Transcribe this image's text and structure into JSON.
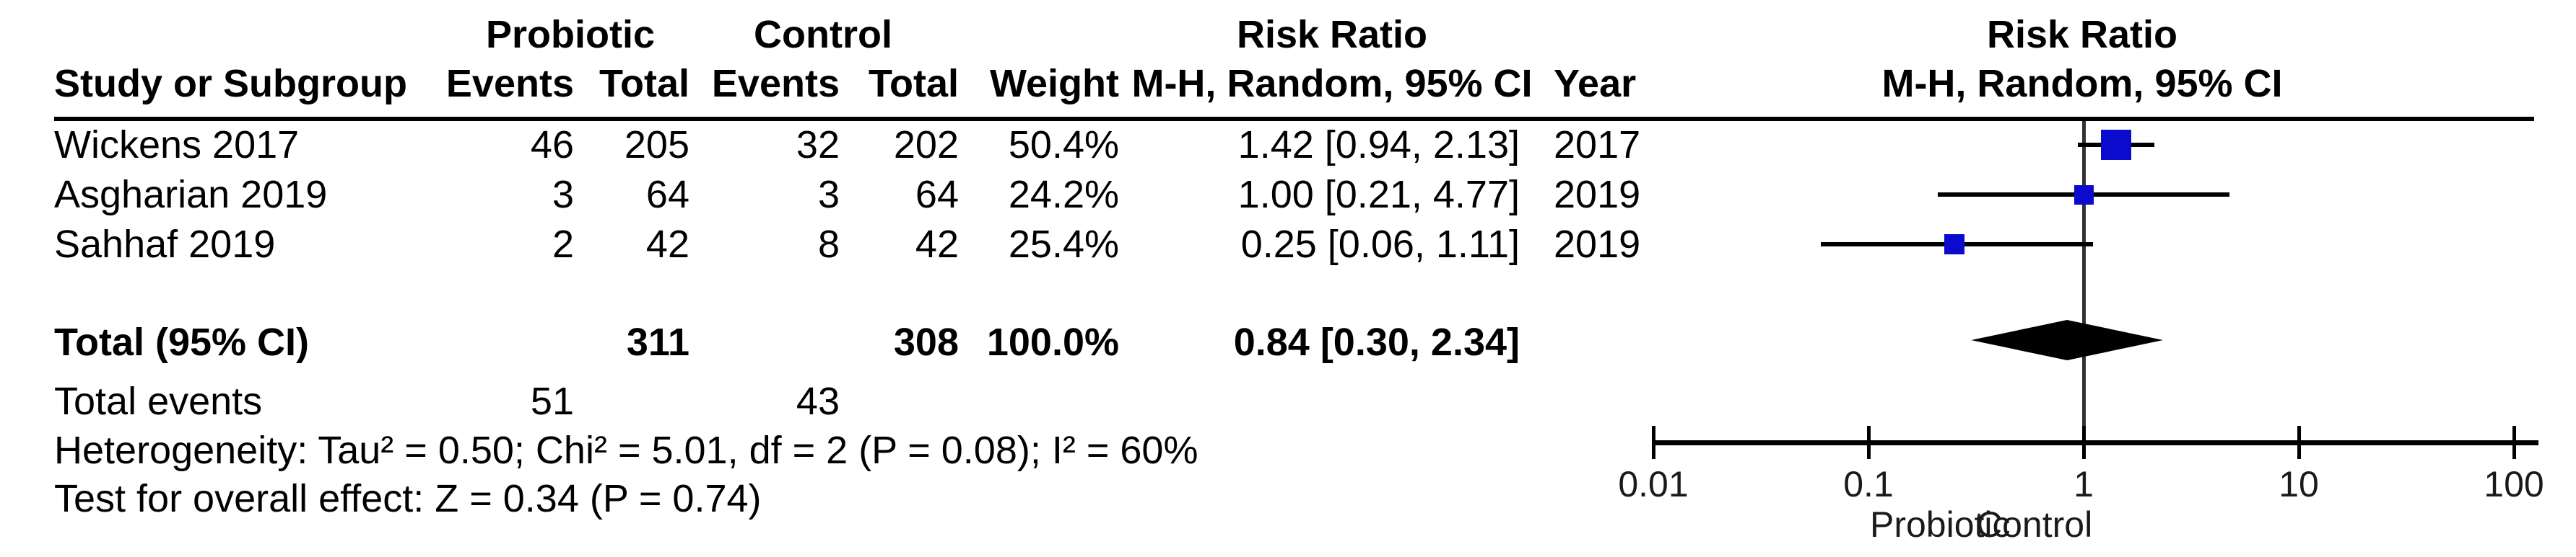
{
  "table": {
    "group_headers": {
      "probiotic": "Probiotic",
      "control": "Control",
      "risk_ratio": "Risk Ratio"
    },
    "col_headers": {
      "study": "Study or Subgroup",
      "events1": "Events",
      "total1": "Total",
      "events2": "Events",
      "total2": "Total",
      "weight": "Weight",
      "mh_ci": "M-H, Random, 95% CI",
      "year": "Year"
    },
    "rows": [
      {
        "study": "Wickens 2017",
        "e1": "46",
        "t1": "205",
        "e2": "32",
        "t2": "202",
        "weight": "50.4%",
        "rr_ci": "1.42 [0.94, 2.13]",
        "year": "2017"
      },
      {
        "study": "Asgharian 2019",
        "e1": "3",
        "t1": "64",
        "e2": "3",
        "t2": "64",
        "weight": "24.2%",
        "rr_ci": "1.00 [0.21, 4.77]",
        "year": "2019"
      },
      {
        "study": "Sahhaf 2019",
        "e1": "2",
        "t1": "42",
        "e2": "8",
        "t2": "42",
        "weight": "25.4%",
        "rr_ci": "0.25 [0.06, 1.11]",
        "year": "2019"
      }
    ],
    "total_row": {
      "label": "Total (95% CI)",
      "t1": "311",
      "t2": "308",
      "weight": "100.0%",
      "rr_ci": "0.84 [0.30, 2.34]"
    },
    "total_events_row": {
      "label": "Total events",
      "e1": "51",
      "e2": "43"
    },
    "heterogeneity": "Heterogeneity: Tau² = 0.50; Chi² = 5.01, df = 2 (P = 0.08); I² = 60%",
    "overall_effect": "Test for overall effect: Z = 0.34 (P = 0.74)"
  },
  "chart_data": {
    "type": "forest",
    "title": "Risk Ratio",
    "subtitle": "M-H, Random, 95% CI",
    "x_scale": "log",
    "xlim": [
      0.01,
      100
    ],
    "axis_ticks": [
      {
        "label": "0.01",
        "value": 0.01
      },
      {
        "label": "0.1",
        "value": 0.1
      },
      {
        "label": "1",
        "value": 1
      },
      {
        "label": "10",
        "value": 10
      },
      {
        "label": "100",
        "value": 100
      }
    ],
    "x_axis_labels": {
      "left": "Probiotic",
      "right": "Control"
    },
    "studies": [
      {
        "name": "Wickens 2017",
        "rr": 1.42,
        "ci_low": 0.94,
        "ci_high": 2.13,
        "weight_pct": 50.4,
        "year": 2017
      },
      {
        "name": "Asgharian 2019",
        "rr": 1.0,
        "ci_low": 0.21,
        "ci_high": 4.77,
        "weight_pct": 24.2,
        "year": 2019
      },
      {
        "name": "Sahhaf 2019",
        "rr": 0.25,
        "ci_low": 0.06,
        "ci_high": 1.11,
        "weight_pct": 25.4,
        "year": 2019
      }
    ],
    "overall": {
      "label": "Total (95% CI)",
      "rr": 0.84,
      "ci_low": 0.3,
      "ci_high": 2.34,
      "weight_pct": 100.0
    },
    "marker_color": "#0b0bcd",
    "diamond_color": "#000000",
    "line_color": "#000000"
  }
}
